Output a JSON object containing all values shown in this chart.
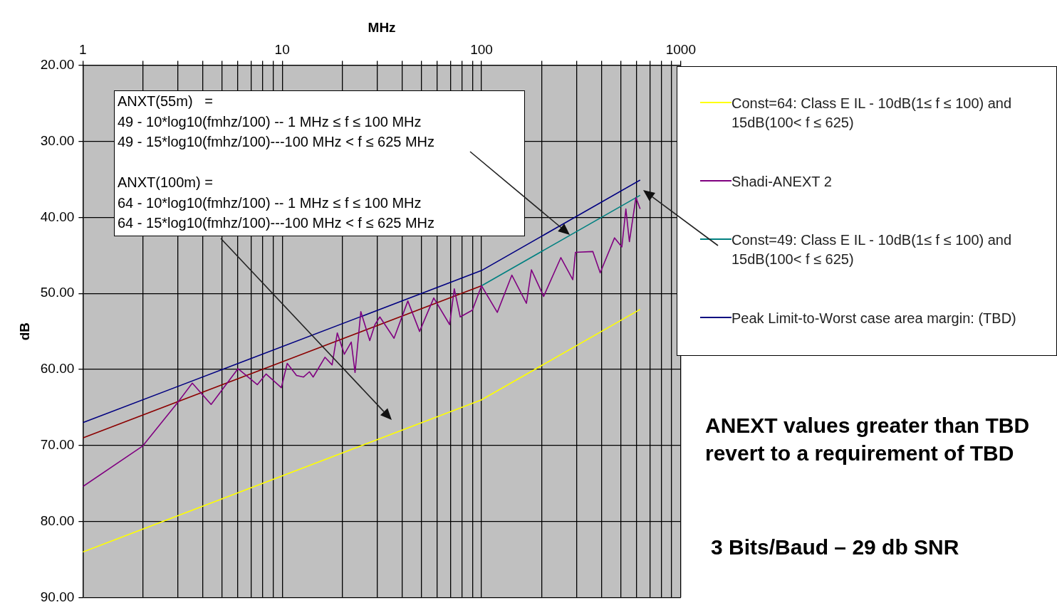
{
  "chart_data": {
    "type": "line",
    "xlabel": "MHz",
    "ylabel": "dB",
    "log": "x",
    "grid": true,
    "legend": "right",
    "marker": "none",
    "xlim": [
      1,
      1000
    ],
    "ylim": [
      90,
      20
    ],
    "xticks": [
      1,
      {
        "value": 2,
        "label": null
      },
      {
        "value": 3,
        "label": null
      },
      {
        "value": 4,
        "label": null
      },
      {
        "value": 5,
        "label": null
      },
      {
        "value": 6,
        "label": null
      },
      {
        "value": 7,
        "label": null
      },
      {
        "value": 8,
        "label": null
      },
      {
        "value": 9,
        "label": null
      },
      10,
      {
        "value": 20,
        "label": null
      },
      {
        "value": 30,
        "label": null
      },
      {
        "value": 40,
        "label": null
      },
      {
        "value": 50,
        "label": null
      },
      {
        "value": 60,
        "label": null
      },
      {
        "value": 70,
        "label": null
      },
      {
        "value": 80,
        "label": null
      },
      {
        "value": 90,
        "label": null
      },
      100,
      {
        "value": 200,
        "label": null
      },
      {
        "value": 300,
        "label": null
      },
      {
        "value": 400,
        "label": null
      },
      {
        "value": 500,
        "label": null
      },
      {
        "value": 600,
        "label": null
      },
      {
        "value": 700,
        "label": null
      },
      {
        "value": 800,
        "label": null
      },
      {
        "value": 900,
        "label": null
      },
      1000
    ],
    "yticks": [
      {
        "value": 20,
        "label": "20.00"
      },
      {
        "value": 30,
        "label": "30.00"
      },
      {
        "value": 40,
        "label": "40.00"
      },
      {
        "value": 50,
        "label": "50.00"
      },
      {
        "value": 60,
        "label": "60.00"
      },
      {
        "value": 70,
        "label": "70.00"
      },
      {
        "value": 80,
        "label": "80.00"
      },
      {
        "value": 90,
        "label": "90.00"
      }
    ],
    "series": [
      {
        "name": "Const=64: Class E IL - 10dB(1≤ f ≤ 100) and 15dB(100< f ≤ 625)",
        "color": "#ffff00",
        "x": [
          1,
          100,
          625
        ],
        "values": [
          84,
          64,
          52.1
        ]
      },
      {
        "name": "Shadi-ANEXT 2",
        "color": "#800080",
        "x": [
          1,
          1.99,
          3,
          3.54,
          4.4,
          6,
          7.5,
          8.3,
          9.9,
          10.6,
          11.8,
          12.8,
          13.7,
          14.3,
          16.4,
          17.8,
          18.9,
          20.5,
          22.2,
          23.2,
          24.8,
          27.5,
          29.2,
          30.9,
          36.4,
          42.7,
          48.9,
          57.6,
          69.2,
          73,
          78.2,
          90,
          100,
          120,
          142,
          168,
          178,
          205,
          250,
          287,
          296,
          362,
          394,
          465,
          506,
          530,
          552,
          595,
          625
        ],
        "values": [
          75.4,
          70.1,
          64.3,
          61.8,
          64.6,
          59.9,
          62,
          60.6,
          62.4,
          59.2,
          60.8,
          61,
          60.3,
          61,
          58.4,
          59.4,
          55.2,
          58,
          56.4,
          60.4,
          52.4,
          56.2,
          54.1,
          53.1,
          55.9,
          51,
          55,
          50.6,
          54.1,
          49.4,
          53.1,
          52.2,
          49,
          52.5,
          47.6,
          51.3,
          46.9,
          50.4,
          45.3,
          48.2,
          44.6,
          44.5,
          47.3,
          42.7,
          43.9,
          38.9,
          43.2,
          37.4,
          38.9
        ]
      },
      {
        "name": "Const=49: Class E IL - 10dB(1≤ f ≤ 100) and 15dB(100< f ≤ 625)",
        "color": "#008080",
        "x": [
          100,
          625
        ],
        "values": [
          49,
          37.1
        ]
      },
      {
        "name": "Peak Limit-to-Worst case area margin: (TBD)",
        "color": "#000080",
        "x": [
          1,
          100,
          625
        ],
        "values": [
          67,
          47,
          35.1
        ]
      },
      {
        "color": "#8b0000",
        "x": [
          1,
          100
        ],
        "values": [
          69,
          49
        ]
      }
    ],
    "annotations": [
      "ANXT(55m)   =\n49 - 10*log10(fmhz/100) -- 1 MHz ≤ f ≤ 100 MHz\n49 - 15*log10(fmhz/100)---100 MHz < f ≤ 625 MHz\n\nANXT(100m) =\n64 - 10*log10(fmhz/100) -- 1 MHz ≤ f ≤ 100 MHz\n64 - 15*log10(fmhz/100)---100 MHz < f ≤ 625 MHz",
      "ANEXT values greater than TBD revert to a requirement of TBD",
      "3 Bits/Baud – 29 db SNR"
    ]
  }
}
